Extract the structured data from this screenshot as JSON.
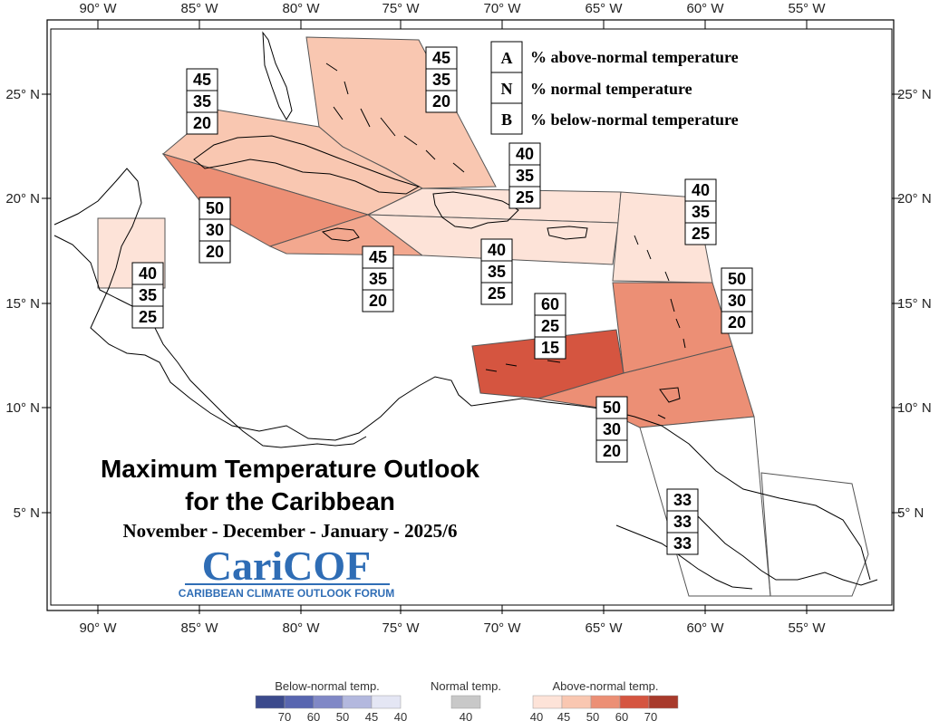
{
  "map": {
    "lon_ticks": [
      "90° W",
      "85° W",
      "80° W",
      "75° W",
      "70° W",
      "65° W",
      "60° W",
      "55° W"
    ],
    "lat_ticks": [
      "25° N",
      "20° N",
      "15° N",
      "10° N",
      "5° N"
    ]
  },
  "legend": {
    "rows": [
      {
        "letter": "A",
        "text": "% above-normal temperature"
      },
      {
        "letter": "N",
        "text": "% normal temperature"
      },
      {
        "letter": "B",
        "text": "% below-normal temperature"
      }
    ]
  },
  "regions": [
    {
      "id": "bahamas",
      "values": [
        "45",
        "35",
        "20"
      ],
      "color": "#f9c7b1"
    },
    {
      "id": "cuba",
      "values": [
        "45",
        "35",
        "20"
      ],
      "color": "#f9c7b1"
    },
    {
      "id": "cayman",
      "values": [
        "50",
        "30",
        "20"
      ],
      "color": "#ec8f75"
    },
    {
      "id": "jamaica",
      "values": [
        "45",
        "35",
        "20"
      ],
      "color": "#f3a88f"
    },
    {
      "id": "hispaniola-north",
      "values": [
        "40",
        "35",
        "25"
      ],
      "color": "#fde3d8"
    },
    {
      "id": "puerto-rico",
      "values": [
        "40",
        "35",
        "25"
      ],
      "color": "#fde3d8"
    },
    {
      "id": "leeward",
      "values": [
        "40",
        "35",
        "25"
      ],
      "color": "#fde3d8"
    },
    {
      "id": "belize",
      "values": [
        "40",
        "35",
        "25"
      ],
      "color": "#fde3d8"
    },
    {
      "id": "windward",
      "values": [
        "50",
        "30",
        "20"
      ],
      "color": "#ec8f75"
    },
    {
      "id": "abc",
      "values": [
        "60",
        "25",
        "15"
      ],
      "color": "#d55540"
    },
    {
      "id": "trinidad",
      "values": [
        "50",
        "30",
        "20"
      ],
      "color": "#ec8f75"
    },
    {
      "id": "guianas",
      "values": [
        "33",
        "33",
        "33"
      ],
      "color": "#ffffff"
    }
  ],
  "title": {
    "line1": "Maximum Temperature Outlook",
    "line2": "for the Caribbean",
    "line3": "November - December - January - 2025/6"
  },
  "logo": {
    "text": "CariCOF",
    "subtitle": "CARIBBEAN CLIMATE OUTLOOK FORUM"
  },
  "colorbar": {
    "below_title": "Below-normal temp.",
    "normal_title": "Normal temp.",
    "above_title": "Above-normal temp.",
    "below_colors": [
      "#3b4a8c",
      "#5866b0",
      "#8088c6",
      "#b3b8de",
      "#e4e6f4"
    ],
    "below_labels": [
      "70",
      "60",
      "50",
      "45",
      "40"
    ],
    "normal_color": "#c8c8c8",
    "normal_labels": [
      "40"
    ],
    "above_colors": [
      "#fde3d8",
      "#f9c7b1",
      "#ec8f75",
      "#d55540",
      "#a83a2b"
    ],
    "above_labels": [
      "40",
      "45",
      "50",
      "60",
      "70"
    ]
  }
}
